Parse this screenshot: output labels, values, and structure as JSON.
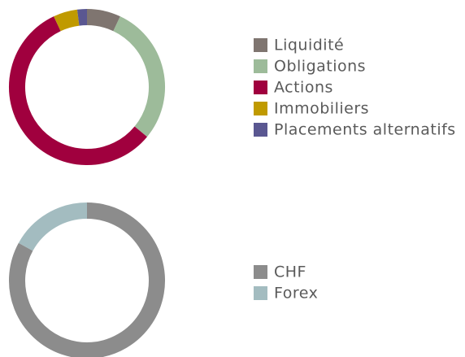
{
  "chart_data": [
    {
      "type": "donut",
      "categories": [
        "Liquidité",
        "Obligations",
        "Actions",
        "Immobiliers",
        "Placements alternatifs"
      ],
      "values": [
        7,
        29,
        57,
        5,
        2
      ],
      "colors": [
        "#7f7570",
        "#9dbb9a",
        "#a0003e",
        "#c09a00",
        "#5a5791"
      ]
    },
    {
      "type": "donut",
      "categories": [
        "CHF",
        "Forex"
      ],
      "values": [
        83,
        17
      ],
      "colors": [
        "#8c8c8c",
        "#a3bcc0"
      ]
    }
  ]
}
